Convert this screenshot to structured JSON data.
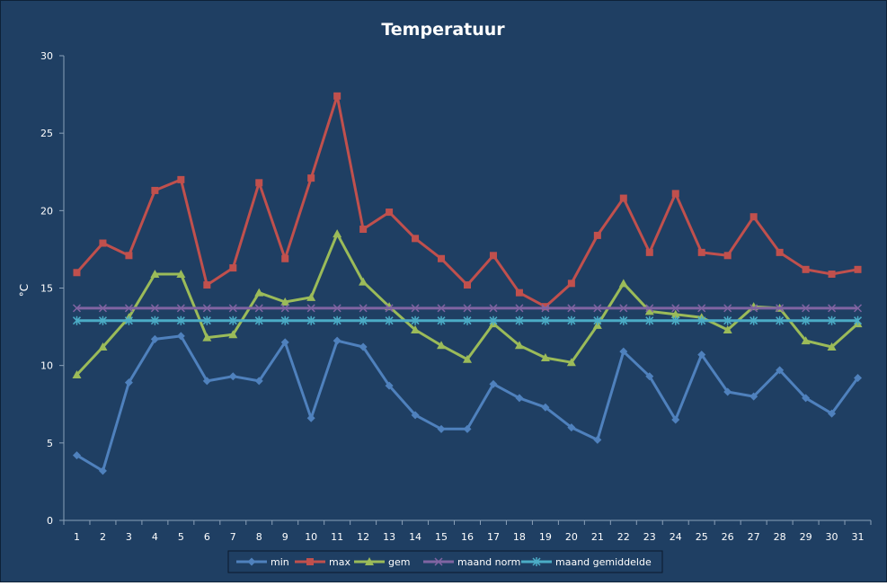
{
  "chart_data": {
    "type": "line",
    "title": "Temperatuur",
    "xlabel": "",
    "ylabel": "°C",
    "ylim": [
      0,
      30
    ],
    "yticks": [
      0,
      5,
      10,
      15,
      20,
      25,
      30
    ],
    "categories": [
      "1",
      "2",
      "3",
      "4",
      "5",
      "6",
      "7",
      "8",
      "9",
      "10",
      "11",
      "12",
      "13",
      "14",
      "15",
      "16",
      "17",
      "18",
      "19",
      "20",
      "21",
      "22",
      "23",
      "24",
      "25",
      "26",
      "27",
      "28",
      "29",
      "30",
      "31"
    ],
    "grid": false,
    "legend": "bottom",
    "series": [
      {
        "name": "min",
        "color": "#4f81bd",
        "marker": "diamond",
        "values": [
          4.2,
          3.2,
          8.9,
          11.7,
          11.9,
          9.0,
          9.3,
          9.0,
          11.5,
          6.6,
          11.6,
          11.2,
          8.7,
          6.8,
          5.9,
          5.9,
          8.8,
          7.9,
          7.3,
          6.0,
          5.2,
          10.9,
          9.3,
          6.5,
          10.7,
          8.3,
          8.0,
          9.7,
          7.9,
          6.9,
          9.2
        ]
      },
      {
        "name": "max",
        "color": "#c0504d",
        "marker": "square",
        "values": [
          16.0,
          17.9,
          17.1,
          21.3,
          22.0,
          15.2,
          16.3,
          21.8,
          16.9,
          22.1,
          27.4,
          18.8,
          19.9,
          18.2,
          16.9,
          15.2,
          17.1,
          14.7,
          13.8,
          15.3,
          18.4,
          20.8,
          17.3,
          21.1,
          17.3,
          17.1,
          19.6,
          17.3,
          16.2,
          15.9,
          16.2
        ]
      },
      {
        "name": "gem",
        "color": "#9bbb59",
        "marker": "triangle",
        "values": [
          9.4,
          11.2,
          13.1,
          15.9,
          15.9,
          11.8,
          12.0,
          14.7,
          14.1,
          14.4,
          18.5,
          15.4,
          13.8,
          12.3,
          11.3,
          10.4,
          12.7,
          11.3,
          10.5,
          10.2,
          12.6,
          15.3,
          13.5,
          13.3,
          13.1,
          12.3,
          13.8,
          13.7,
          11.6,
          11.2,
          12.7
        ]
      },
      {
        "name": "maand norm",
        "color": "#8064a2",
        "marker": "x",
        "values": [
          13.7,
          13.7,
          13.7,
          13.7,
          13.7,
          13.7,
          13.7,
          13.7,
          13.7,
          13.7,
          13.7,
          13.7,
          13.7,
          13.7,
          13.7,
          13.7,
          13.7,
          13.7,
          13.7,
          13.7,
          13.7,
          13.7,
          13.7,
          13.7,
          13.7,
          13.7,
          13.7,
          13.7,
          13.7,
          13.7,
          13.7
        ]
      },
      {
        "name": "maand gemiddelde",
        "color": "#4bacc6",
        "marker": "star",
        "values": [
          12.9,
          12.9,
          12.9,
          12.9,
          12.9,
          12.9,
          12.9,
          12.9,
          12.9,
          12.9,
          12.9,
          12.9,
          12.9,
          12.9,
          12.9,
          12.9,
          12.9,
          12.9,
          12.9,
          12.9,
          12.9,
          12.9,
          12.9,
          12.9,
          12.9,
          12.9,
          12.9,
          12.9,
          12.9,
          12.9,
          12.9
        ]
      }
    ]
  }
}
